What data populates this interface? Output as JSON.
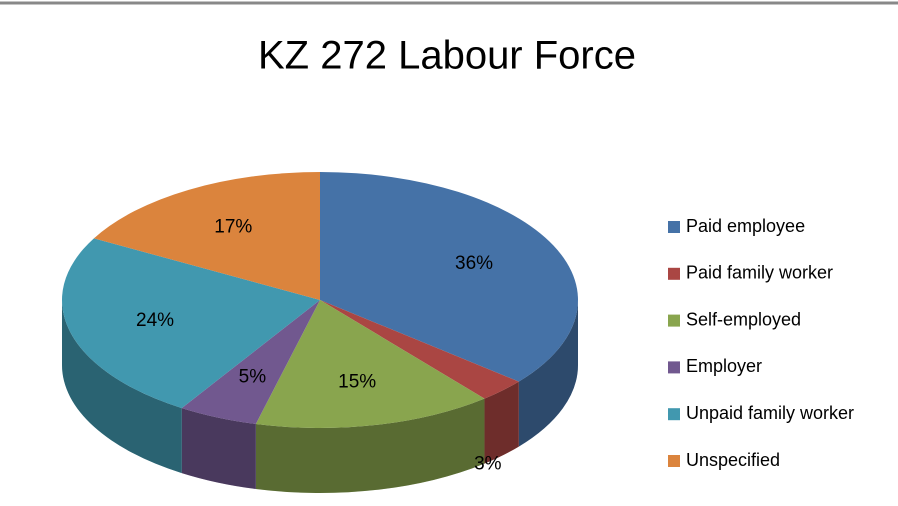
{
  "chart_data": {
    "type": "pie3d",
    "title": "KZ 272 Labour Force",
    "categories": [
      "Paid employee",
      "Paid family worker",
      "Self-employed",
      "Employer",
      "Unpaid family worker",
      "Unspecified"
    ],
    "values": [
      36,
      3,
      15,
      5,
      24,
      17
    ],
    "value_labels": [
      "36%",
      "3%",
      "15%",
      "5%",
      "24%",
      "17%"
    ],
    "colors": [
      "#4572a7",
      "#aa4643",
      "#89a54e",
      "#71588f",
      "#4198af",
      "#db843d"
    ],
    "legend": "right"
  }
}
